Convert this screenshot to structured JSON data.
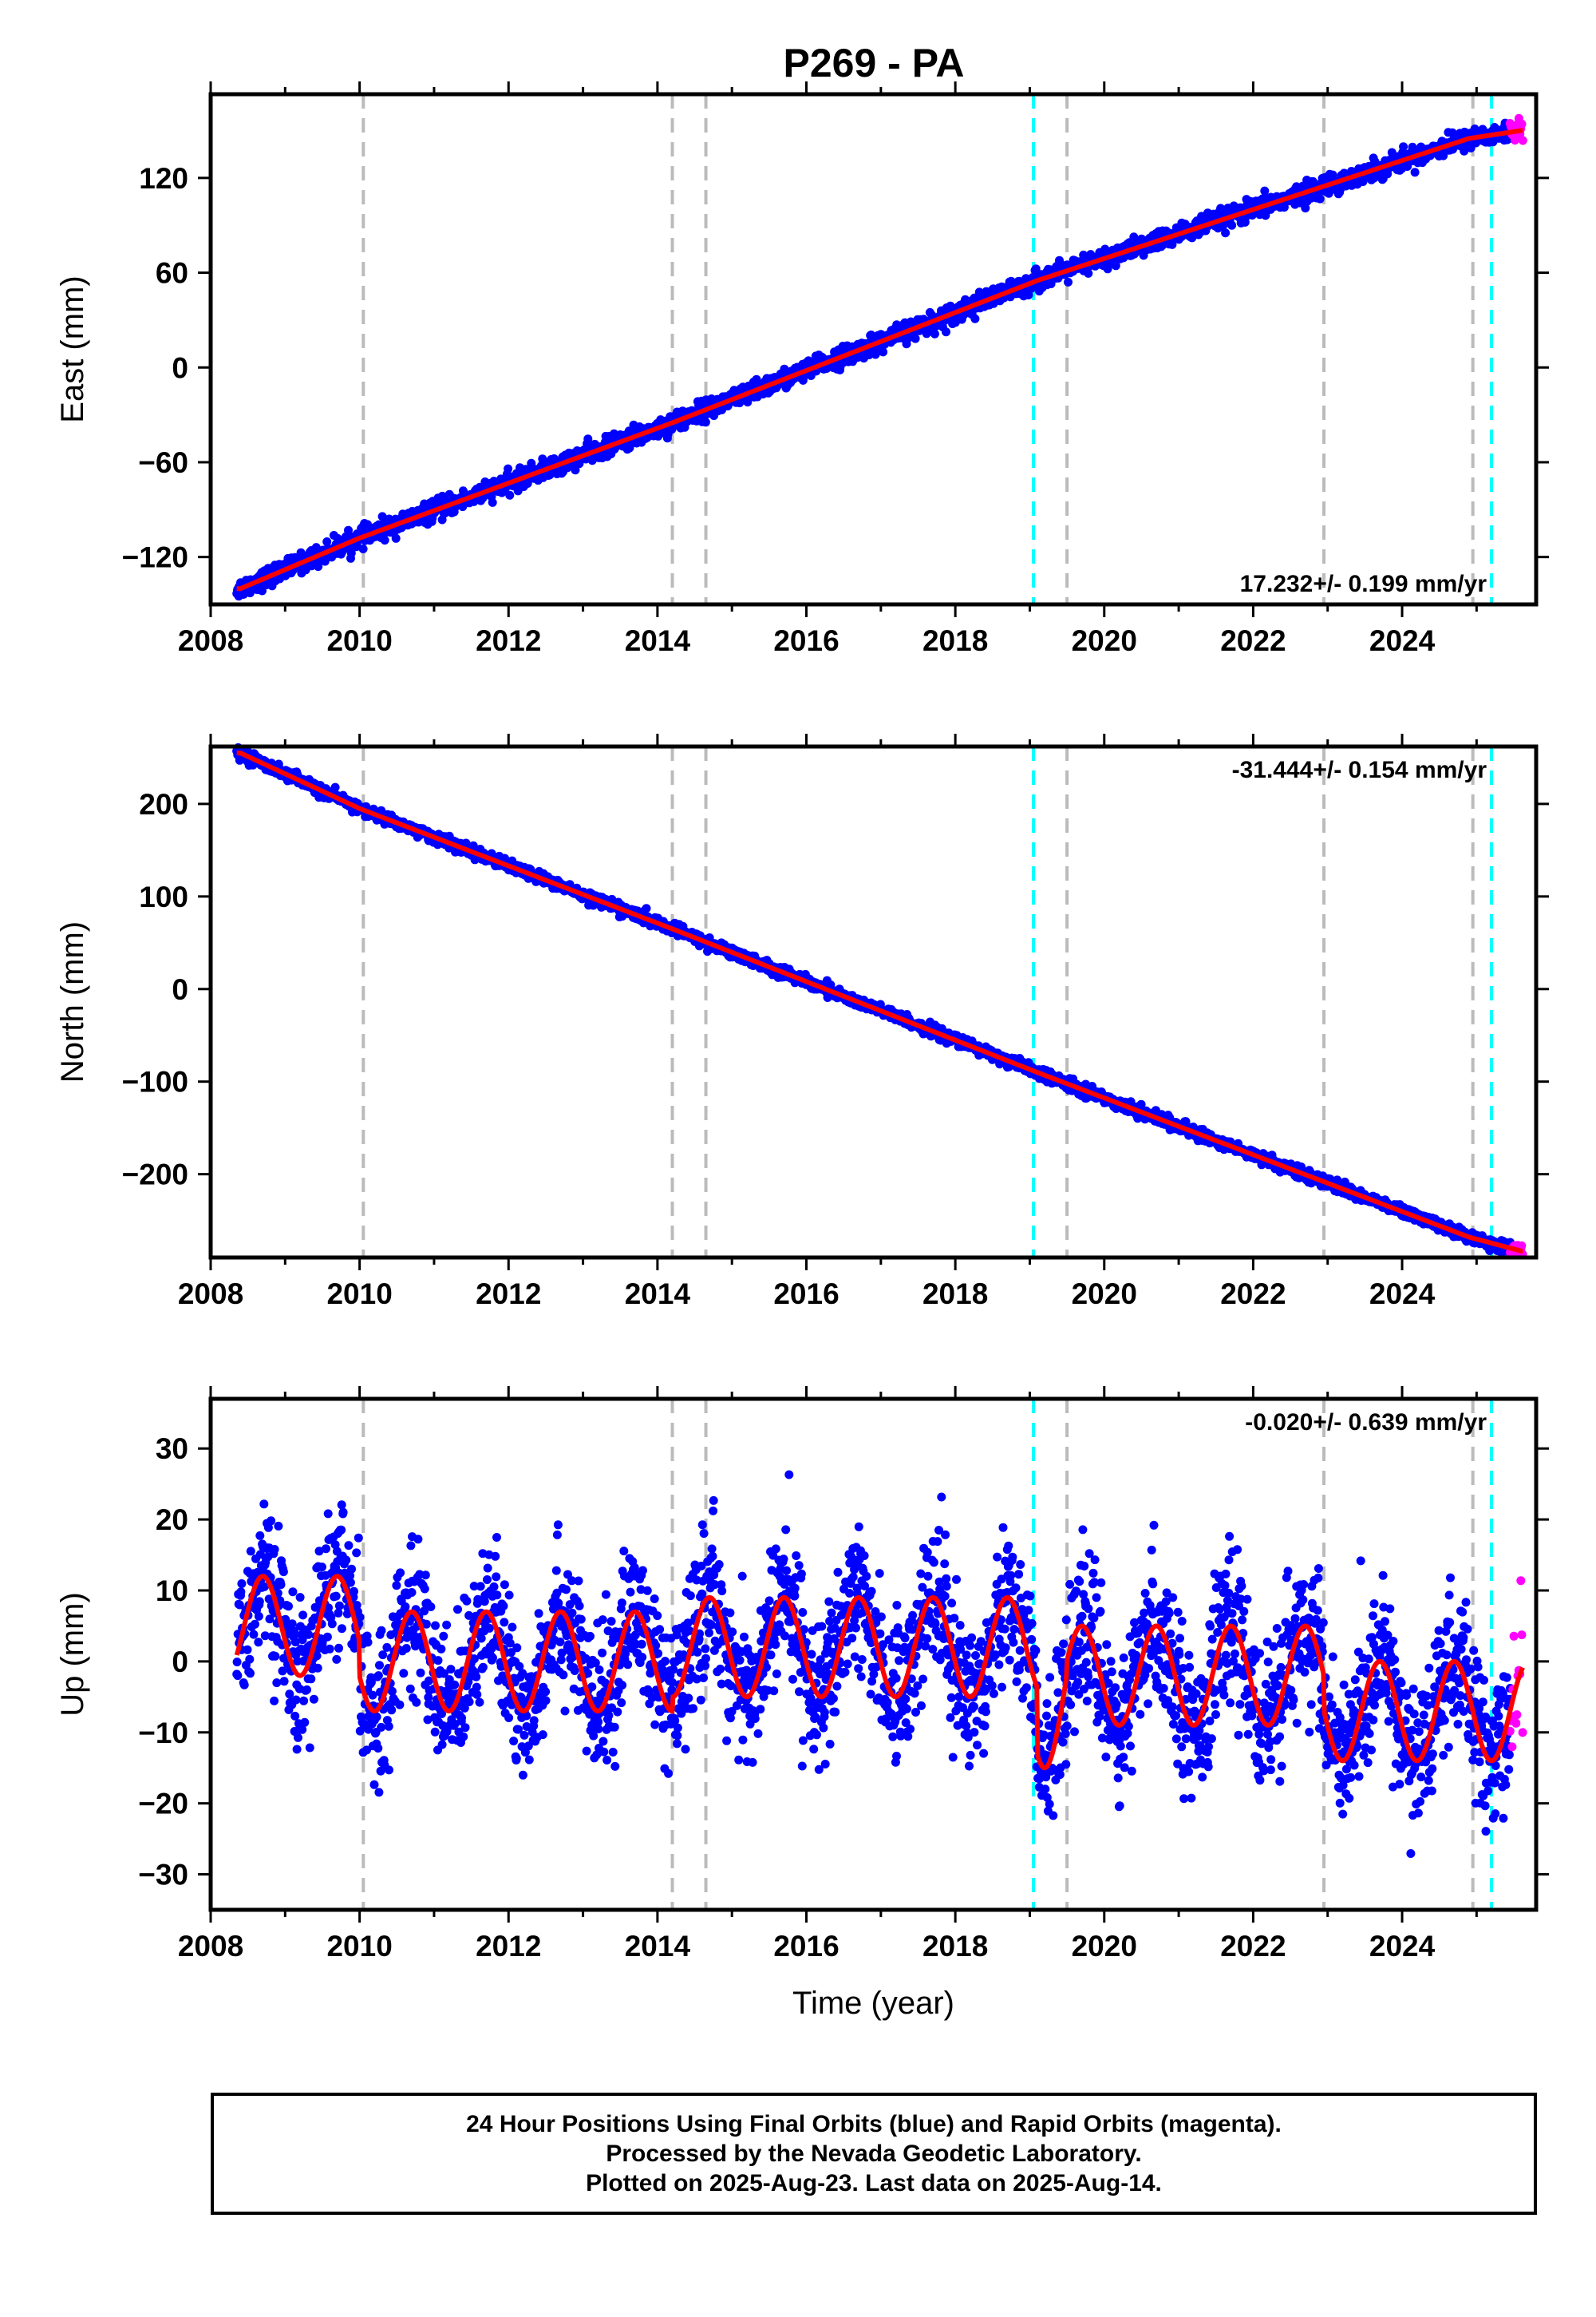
{
  "title": "P269 - PA",
  "colors": {
    "final_points": "#0000ff",
    "rapid_points": "#ff00ff",
    "model_line": "#ff0000",
    "event_gray": "#bbbbbb",
    "event_cyan": "#00ffff",
    "frame": "#000000"
  },
  "chart_data": [
    {
      "type": "scatter",
      "ylabel": "East (mm)",
      "xlim": [
        2008.0,
        2025.8
      ],
      "ylim": [
        -150,
        173
      ],
      "yticks": [
        "-120",
        "-60",
        "0",
        "60",
        "120"
      ],
      "ytick_values": [
        -120,
        -60,
        0,
        60,
        120
      ],
      "xticks": [
        "2008",
        "2010",
        "2012",
        "2014",
        "2016",
        "2018",
        "2020",
        "2022",
        "2024"
      ],
      "xtick_values": [
        2008,
        2010,
        2012,
        2014,
        2016,
        2018,
        2020,
        2022,
        2024
      ],
      "rate_label": "17.232+/- 0.199 mm/yr",
      "rate_position": "bottom-right",
      "trend": {
        "slope": 17.232,
        "value_at_2008_4": -140
      },
      "model_breakpoints": [
        [
          2008.4,
          -140
        ],
        [
          2010.0,
          -108
        ],
        [
          2014.2,
          -35
        ],
        [
          2019.1,
          55
        ],
        [
          2024.9,
          145
        ],
        [
          2025.6,
          150
        ]
      ],
      "series": [
        {
          "name": "Final Orbits",
          "color": "#0000ff",
          "x_range": [
            2008.35,
            2025.45
          ],
          "scatter_mm": 3
        },
        {
          "name": "Rapid Orbits",
          "color": "#ff00ff",
          "x_range": [
            2025.45,
            2025.62
          ],
          "scatter_mm": 3
        }
      ]
    },
    {
      "type": "scatter",
      "ylabel": "North (mm)",
      "xlim": [
        2008.0,
        2025.8
      ],
      "ylim": [
        -290,
        262
      ],
      "yticks": [
        "-200",
        "-100",
        "0",
        "100",
        "200"
      ],
      "ytick_values": [
        -200,
        -100,
        0,
        100,
        200
      ],
      "xticks": [
        "2008",
        "2010",
        "2012",
        "2014",
        "2016",
        "2018",
        "2020",
        "2022",
        "2024"
      ],
      "xtick_values": [
        2008,
        2010,
        2012,
        2014,
        2016,
        2018,
        2020,
        2022,
        2024
      ],
      "rate_label": "-31.444+/- 0.154 mm/yr",
      "rate_position": "top-right",
      "model_breakpoints": [
        [
          2008.4,
          255
        ],
        [
          2010.0,
          195
        ],
        [
          2014.2,
          65
        ],
        [
          2019.1,
          -90
        ],
        [
          2024.9,
          -268
        ],
        [
          2025.6,
          -283
        ]
      ],
      "series": [
        {
          "name": "Final Orbits",
          "color": "#0000ff",
          "x_range": [
            2008.35,
            2025.45
          ],
          "scatter_mm": 3
        },
        {
          "name": "Rapid Orbits",
          "color": "#ff00ff",
          "x_range": [
            2025.45,
            2025.62
          ],
          "scatter_mm": 3
        }
      ]
    },
    {
      "type": "scatter",
      "ylabel": "Up (mm)",
      "xlabel": "Time (year)",
      "xlim": [
        2008.0,
        2025.8
      ],
      "ylim": [
        -35,
        37
      ],
      "yticks": [
        "-30",
        "-20",
        "-10",
        "0",
        "10",
        "20",
        "30"
      ],
      "ytick_values": [
        -30,
        -20,
        -10,
        0,
        10,
        20,
        30
      ],
      "xticks": [
        "2008",
        "2010",
        "2012",
        "2014",
        "2016",
        "2018",
        "2020",
        "2022",
        "2024"
      ],
      "xtick_values": [
        2008,
        2010,
        2012,
        2014,
        2016,
        2018,
        2020,
        2022,
        2024
      ],
      "rate_label": "-0.020+/- 0.639 mm/yr",
      "rate_position": "top-right",
      "model_offsets": [
        {
          "from": 2008.35,
          "to": 2010.0,
          "offset": 5,
          "amplitude": 7
        },
        {
          "from": 2010.0,
          "to": 2014.2,
          "offset": 0,
          "amplitude": 7
        },
        {
          "from": 2014.2,
          "to": 2019.1,
          "offset": 2,
          "amplitude": 7
        },
        {
          "from": 2019.1,
          "to": 2019.5,
          "offset": -5,
          "amplitude": 10
        },
        {
          "from": 2019.5,
          "to": 2022.95,
          "offset": -2,
          "amplitude": 7
        },
        {
          "from": 2022.95,
          "to": 2025.62,
          "offset": -7,
          "amplitude": 7
        }
      ],
      "series": [
        {
          "name": "Final Orbits",
          "color": "#0000ff",
          "x_range": [
            2008.35,
            2025.45
          ],
          "scatter_mm": 5
        },
        {
          "name": "Rapid Orbits",
          "color": "#ff00ff",
          "x_range": [
            2025.45,
            2025.62
          ],
          "scatter_mm": 5
        }
      ]
    }
  ],
  "events": [
    {
      "x": 2010.05,
      "color": "gray"
    },
    {
      "x": 2014.2,
      "color": "gray"
    },
    {
      "x": 2014.65,
      "color": "gray"
    },
    {
      "x": 2019.05,
      "color": "cyan"
    },
    {
      "x": 2019.5,
      "color": "gray"
    },
    {
      "x": 2022.95,
      "color": "gray"
    },
    {
      "x": 2024.95,
      "color": "gray"
    },
    {
      "x": 2025.2,
      "color": "cyan"
    }
  ],
  "footer": {
    "line1": "24 Hour Positions Using Final Orbits (blue) and Rapid Orbits (magenta).",
    "line2": "Processed by the Nevada Geodetic Laboratory.",
    "line3": "Plotted on 2025-Aug-23. Last data on 2025-Aug-14."
  }
}
